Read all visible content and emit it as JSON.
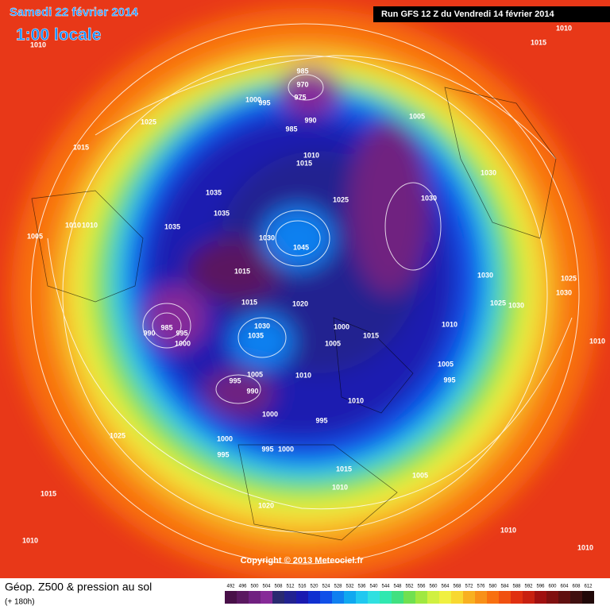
{
  "header": {
    "date": "Samedi 22 février 2014",
    "time": "1:00 locale",
    "run": "Run GFS 12 Z du Vendredi 14 février 2014"
  },
  "copyright": "Copyright © 2013 Meteociel.fr",
  "legend": {
    "title": "Géop. Z500 & pression au sol",
    "subtitle": "(+ 180h)"
  },
  "colorbar": {
    "values": [
      492,
      496,
      500,
      504,
      508,
      512,
      516,
      520,
      524,
      528,
      532,
      536,
      540,
      544,
      548,
      552,
      556,
      560,
      564,
      568,
      572,
      576,
      580,
      584,
      588,
      592,
      596,
      600,
      604,
      608,
      612
    ],
    "colors": [
      "#481048",
      "#5a1860",
      "#702080",
      "#862a98",
      "#2a2a70",
      "#222290",
      "#1a1ab0",
      "#1030d0",
      "#1050e8",
      "#1080f0",
      "#10a8f0",
      "#20c8f0",
      "#30e0e0",
      "#30e8b0",
      "#40e080",
      "#70e050",
      "#a0e840",
      "#d0f040",
      "#f0f040",
      "#f8d830",
      "#f8b020",
      "#f89018",
      "#f87010",
      "#f05010",
      "#e03010",
      "#c82010",
      "#a01010",
      "#801010",
      "#601010",
      "#401010",
      "#200808"
    ]
  },
  "pressure_labels": [
    "1010",
    "1010",
    "1015",
    "1025",
    "1015",
    "985",
    "970",
    "975",
    "1000",
    "995",
    "990",
    "985",
    "1005",
    "1010",
    "1015",
    "1030",
    "1030",
    "1035",
    "1025",
    "1035",
    "1005",
    "1010",
    "1010",
    "1035",
    "1030",
    "1045",
    "1015",
    "1015",
    "1020",
    "1030",
    "1025",
    "1030",
    "1025",
    "1030",
    "990",
    "985",
    "995",
    "1000",
    "1030",
    "1035",
    "1000",
    "1015",
    "1010",
    "1005",
    "1010",
    "1010",
    "1005",
    "995",
    "990",
    "1005",
    "995",
    "1010",
    "1000",
    "995",
    "1000",
    "995",
    "1025",
    "995",
    "1000",
    "1015",
    "1005",
    "1010",
    "1015",
    "1020",
    "1010",
    "1010",
    "1010"
  ]
}
